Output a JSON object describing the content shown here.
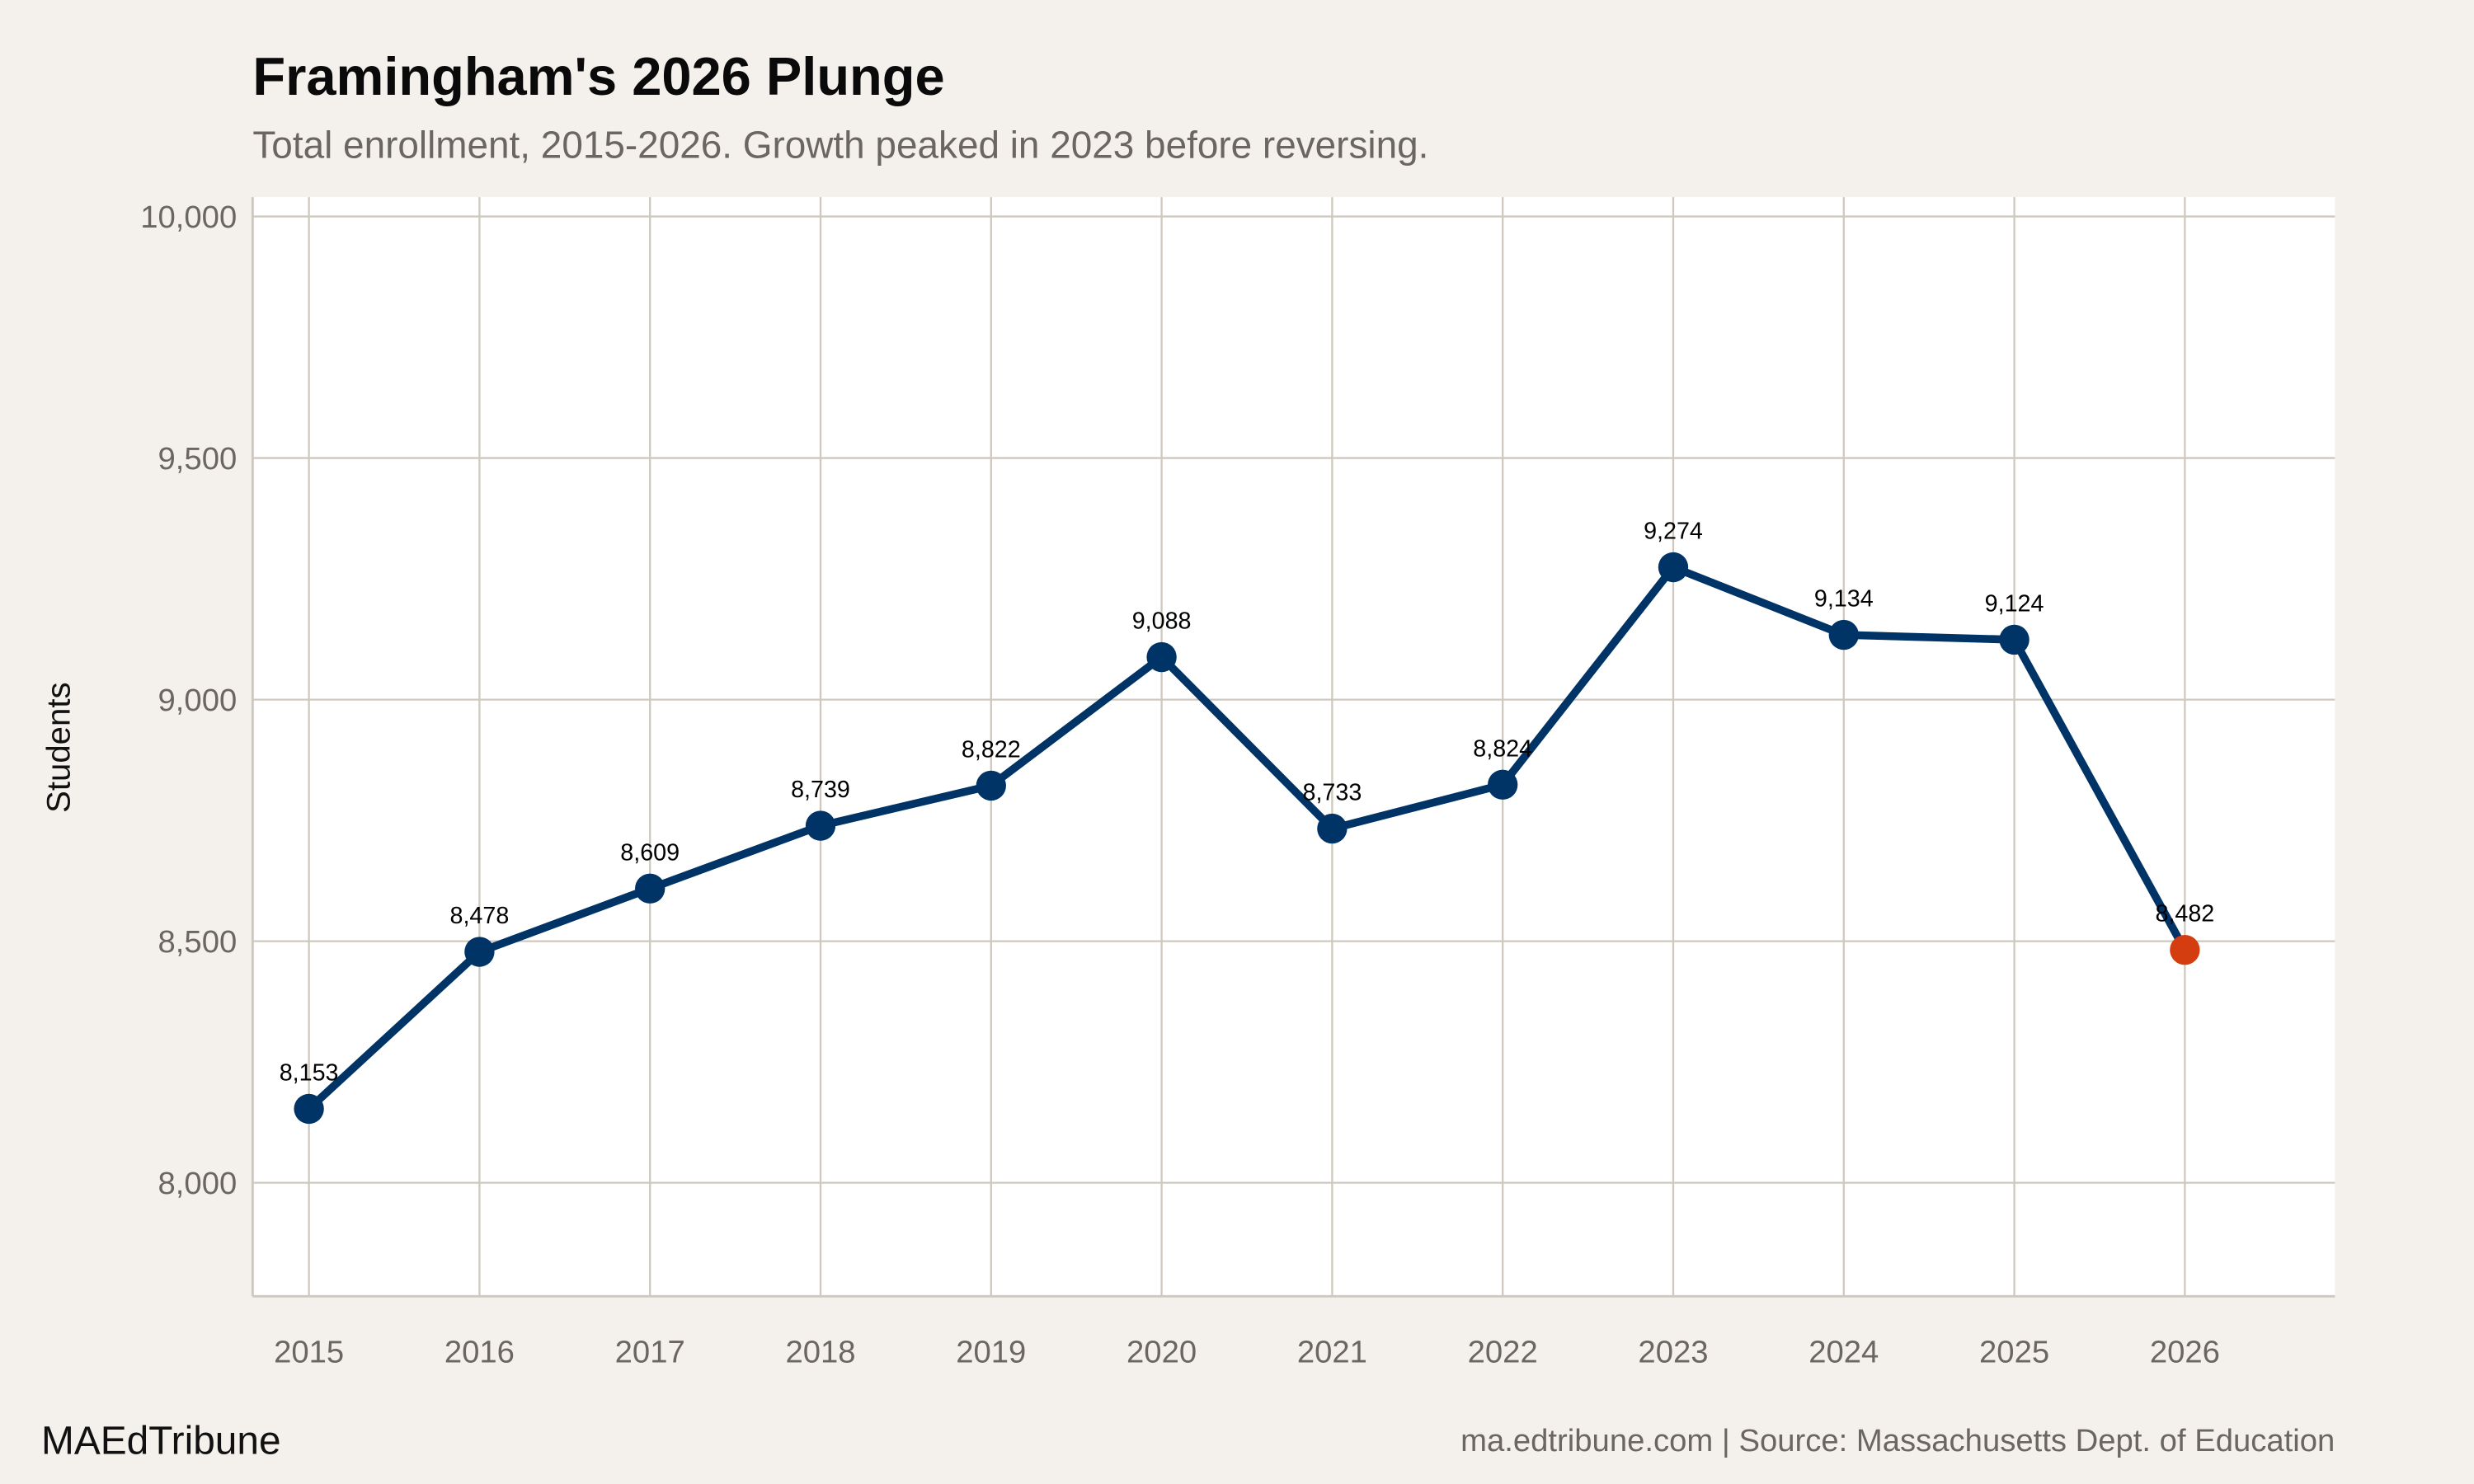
{
  "chart_data": {
    "type": "line",
    "title": "Framingham's 2026 Plunge",
    "subtitle": "Total enrollment, 2015-2026. Growth peaked in 2023 before reversing.",
    "xlabel": "",
    "ylabel": "Students",
    "x": [
      2015,
      2016,
      2017,
      2018,
      2019,
      2020,
      2021,
      2022,
      2023,
      2024,
      2025,
      2026
    ],
    "x_tick_labels": [
      "2015",
      "2016",
      "2017",
      "2018",
      "2019",
      "2020",
      "2021",
      "2022",
      "2023",
      "2024",
      "2025",
      "2026"
    ],
    "values": [
      8153,
      8478,
      8609,
      8739,
      8822,
      9088,
      8733,
      8824,
      9274,
      9134,
      9124,
      8482
    ],
    "data_labels": [
      "8,153",
      "8,478",
      "8,609",
      "8,739",
      "8,822",
      "9,088",
      "8,733",
      "8,824",
      "9,274",
      "9,134",
      "9,124",
      "8,482"
    ],
    "y_ticks": [
      8000,
      8500,
      9000,
      9500,
      10000
    ],
    "y_tick_labels": [
      "8,000",
      "8,500",
      "9,000",
      "9,500",
      "10,000"
    ],
    "ylim": [
      7765,
      10040
    ],
    "xlim": [
      2014.67,
      2026.88
    ],
    "grid": true,
    "legend": "none",
    "colors": {
      "line": "#003366",
      "highlight": "#d43d0f",
      "background": "#f4f1ec",
      "plot_background": "#ffffff",
      "grid": "#cfc8bf"
    },
    "highlight_point": 2026
  },
  "footer": {
    "brand": "MAEdTribune",
    "source": "ma.edtribune.com | Source: Massachusetts Dept. of Education"
  }
}
